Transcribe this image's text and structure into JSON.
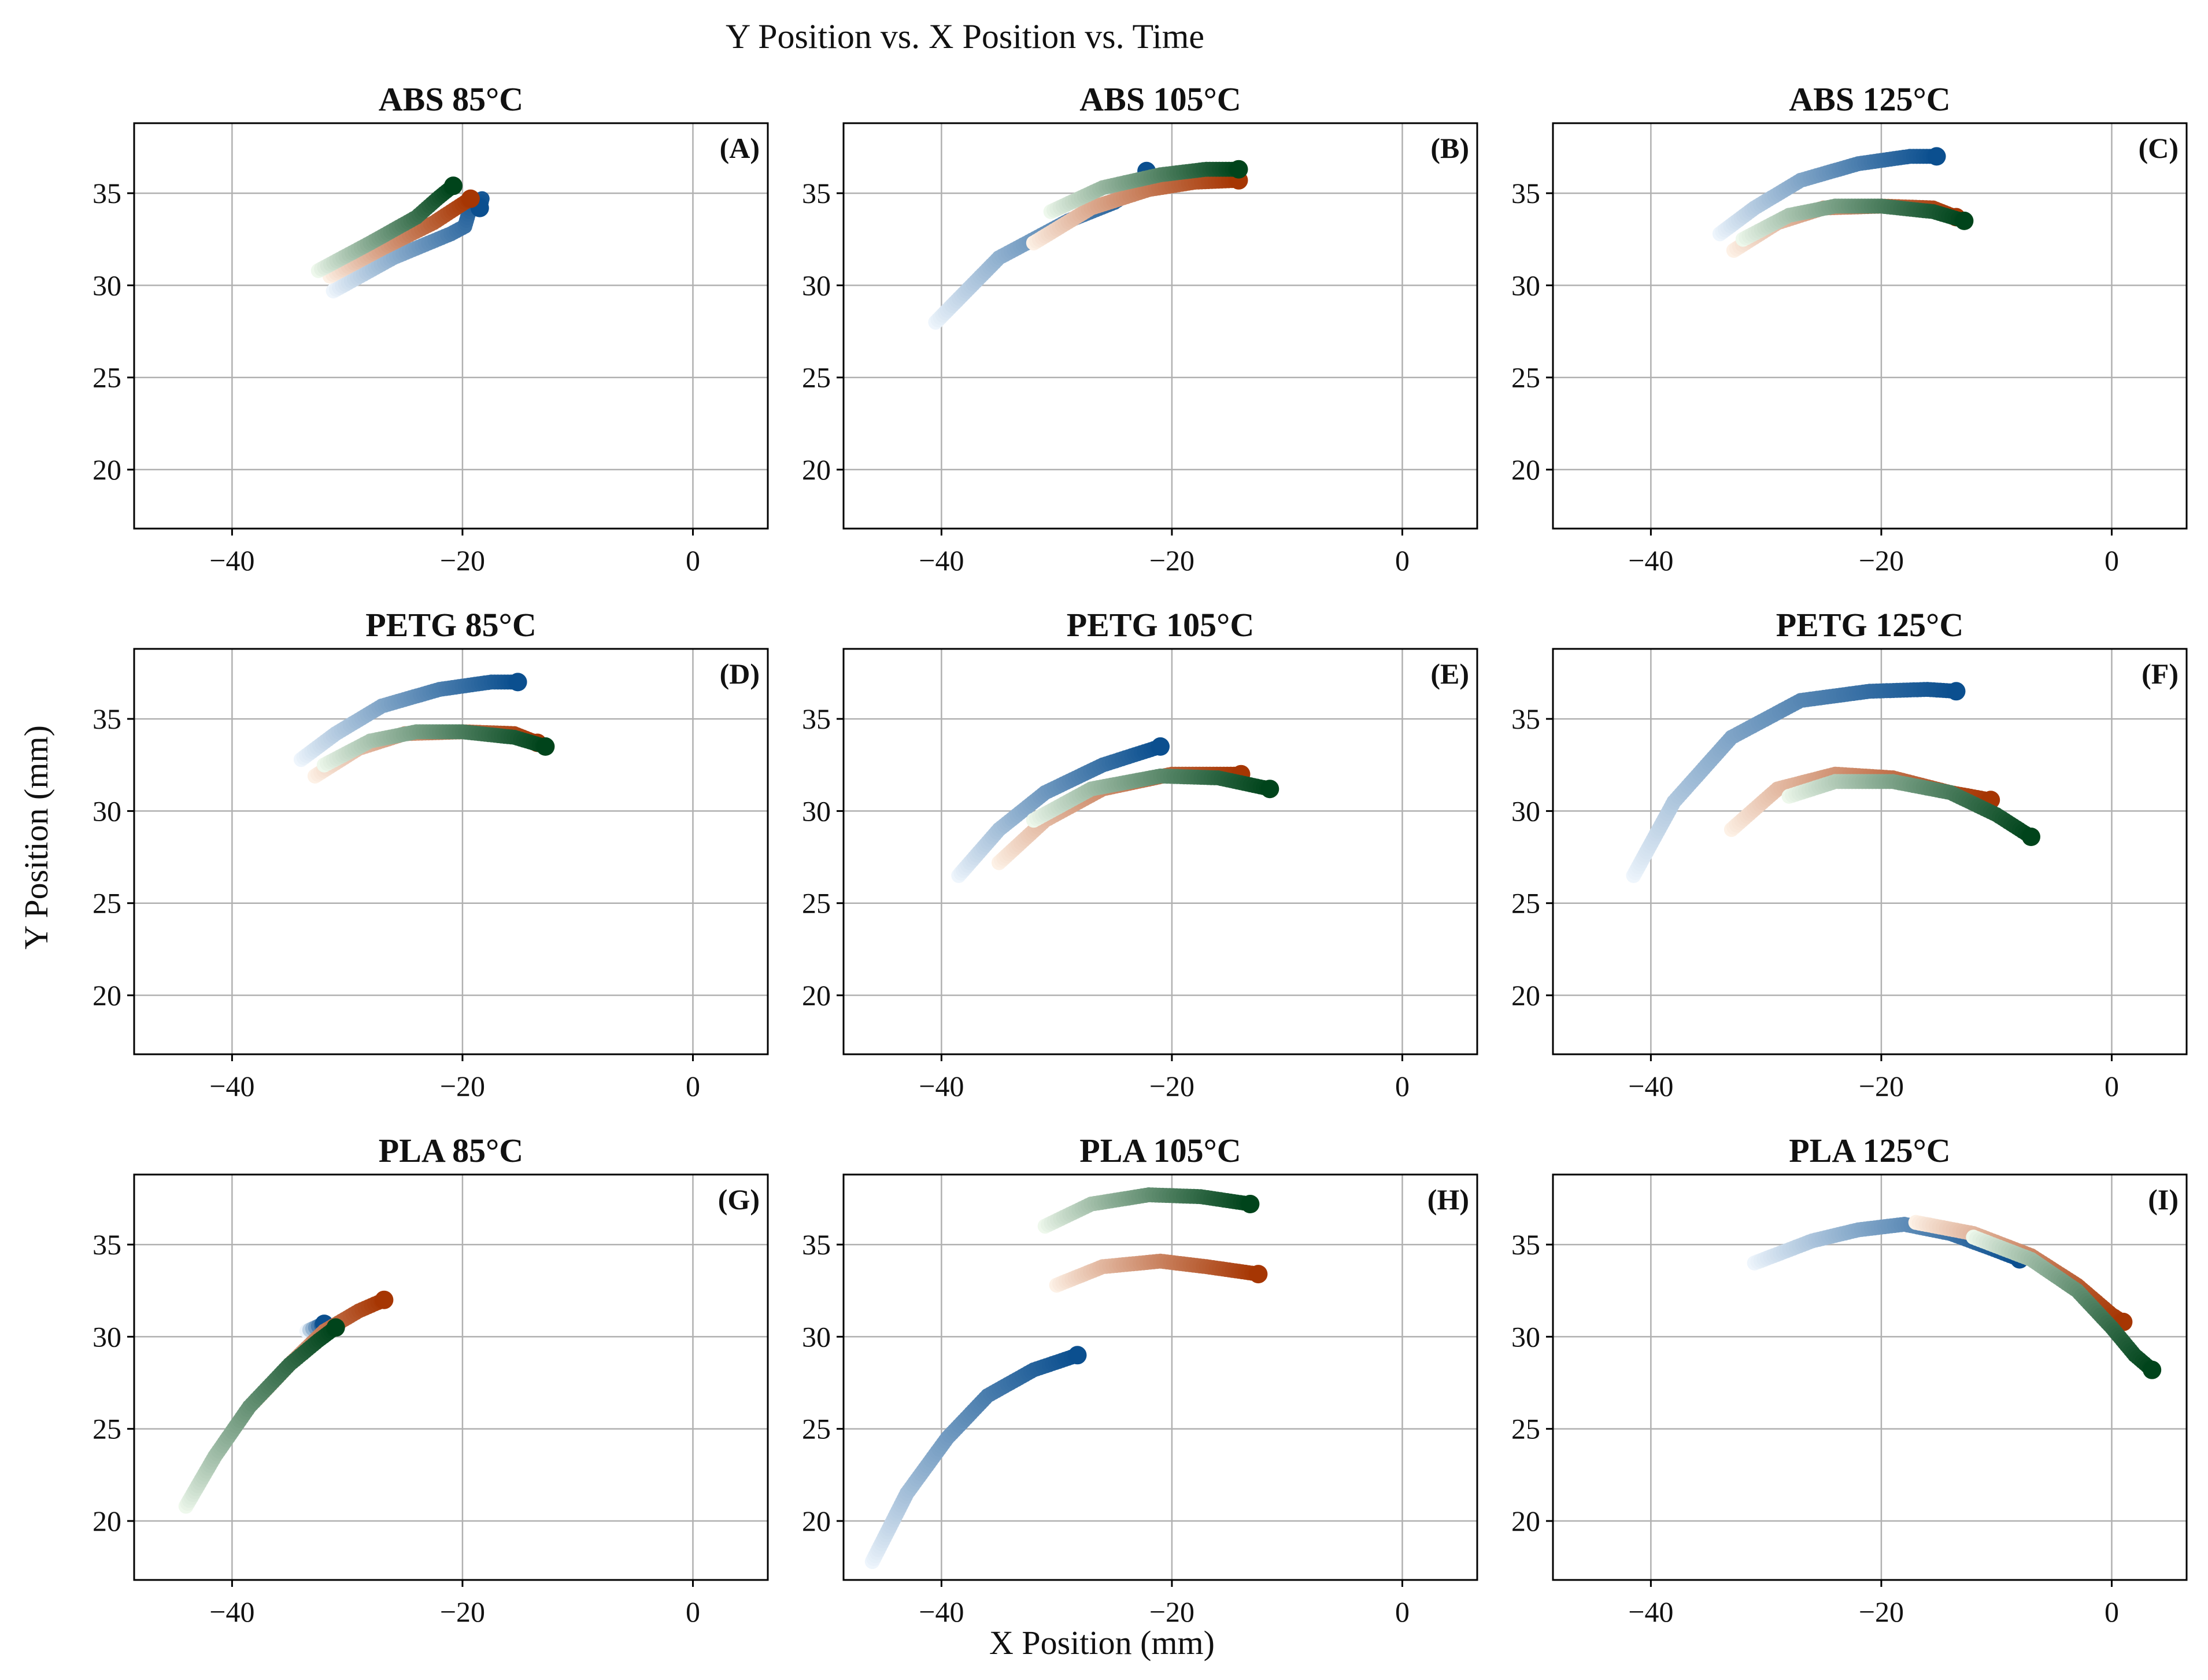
{
  "title": "Y Position vs. X Position vs. Time",
  "xlabel": "X Position (mm)",
  "ylabel": "Y Position (mm)",
  "colors": {
    "series_1": [
      "#eef5fc",
      "#0b4f8f"
    ],
    "series_2": [
      "#fdf1e6",
      "#a63603"
    ],
    "series_3": [
      "#eef8ec",
      "#00441b"
    ]
  },
  "chart_data": [
    {
      "type": "scatter",
      "title": "ABS 85°C",
      "letter": "(A)",
      "xlim": [
        -48.5,
        6.5
      ],
      "ylim": [
        16.8,
        38.8
      ],
      "xticks": [
        -40,
        -20,
        0
      ],
      "yticks": [
        20,
        25,
        30,
        35
      ],
      "grid": true,
      "series": [
        {
          "name": "series_1",
          "points": [
            [
              -31.2,
              29.7
            ],
            [
              -26,
              31.5
            ],
            [
              -21,
              32.8
            ],
            [
              -19.8,
              33.2
            ],
            [
              -19.2,
              34.5
            ],
            [
              -18.3,
              34.7
            ],
            [
              -18.5,
              34.2
            ]
          ]
        },
        {
          "name": "series_2",
          "points": [
            [
              -31.5,
              30.5
            ],
            [
              -27,
              32
            ],
            [
              -22.5,
              33.4
            ],
            [
              -19.8,
              34.5
            ],
            [
              -19.3,
              34.7
            ]
          ]
        },
        {
          "name": "series_3",
          "points": [
            [
              -32.5,
              30.8
            ],
            [
              -28,
              32.3
            ],
            [
              -24,
              33.7
            ],
            [
              -22,
              34.8
            ],
            [
              -20.8,
              35.4
            ]
          ]
        }
      ]
    },
    {
      "type": "scatter",
      "title": "ABS 105°C",
      "letter": "(B)",
      "xlim": [
        -48.5,
        6.5
      ],
      "ylim": [
        16.8,
        38.8
      ],
      "xticks": [
        -40,
        -20,
        0
      ],
      "yticks": [
        20,
        25,
        30,
        35
      ],
      "grid": true,
      "series": [
        {
          "name": "series_1",
          "points": [
            [
              -40.5,
              28
            ],
            [
              -35,
              31.5
            ],
            [
              -29,
              33.5
            ],
            [
              -25,
              34.5
            ],
            [
              -22.5,
              35.5
            ],
            [
              -22.2,
              36.2
            ]
          ]
        },
        {
          "name": "series_2",
          "points": [
            [
              -32,
              32.3
            ],
            [
              -27,
              34.2
            ],
            [
              -22,
              35.2
            ],
            [
              -18,
              35.6
            ],
            [
              -14.2,
              35.7
            ]
          ]
        },
        {
          "name": "series_3",
          "points": [
            [
              -30.5,
              34
            ],
            [
              -26,
              35.3
            ],
            [
              -21,
              36
            ],
            [
              -17,
              36.3
            ],
            [
              -14.2,
              36.3
            ]
          ]
        }
      ]
    },
    {
      "type": "scatter",
      "title": "ABS 125°C",
      "letter": "(C)",
      "xlim": [
        -48.5,
        6.5
      ],
      "ylim": [
        16.8,
        38.8
      ],
      "xticks": [
        -40,
        -20,
        0
      ],
      "yticks": [
        20,
        25,
        30,
        35
      ],
      "grid": true,
      "series": [
        {
          "name": "series_1",
          "points": [
            [
              -34,
              32.8
            ],
            [
              -31,
              34.2
            ],
            [
              -27,
              35.7
            ],
            [
              -22,
              36.6
            ],
            [
              -17.5,
              37
            ],
            [
              -15.2,
              37
            ]
          ]
        },
        {
          "name": "series_2",
          "points": [
            [
              -32.8,
              31.9
            ],
            [
              -29,
              33.4
            ],
            [
              -25,
              34.2
            ],
            [
              -20,
              34.3
            ],
            [
              -15.5,
              34.2
            ],
            [
              -13.5,
              33.7
            ]
          ]
        },
        {
          "name": "series_3",
          "points": [
            [
              -32,
              32.5
            ],
            [
              -28,
              33.8
            ],
            [
              -24,
              34.3
            ],
            [
              -20,
              34.3
            ],
            [
              -15.5,
              34
            ],
            [
              -12.8,
              33.5
            ]
          ]
        }
      ]
    },
    {
      "type": "scatter",
      "title": "PETG 85°C",
      "letter": "(D)",
      "xlim": [
        -48.5,
        6.5
      ],
      "ylim": [
        16.8,
        38.8
      ],
      "xticks": [
        -40,
        -20,
        0
      ],
      "yticks": [
        20,
        25,
        30,
        35
      ],
      "grid": true,
      "series": [
        {
          "name": "series_1",
          "points": [
            [
              -34,
              32.8
            ],
            [
              -31,
              34.2
            ],
            [
              -27,
              35.7
            ],
            [
              -22,
              36.6
            ],
            [
              -17.5,
              37
            ],
            [
              -15.2,
              37
            ]
          ]
        },
        {
          "name": "series_2",
          "points": [
            [
              -32.8,
              31.9
            ],
            [
              -29,
              33.4
            ],
            [
              -25,
              34.2
            ],
            [
              -20,
              34.3
            ],
            [
              -15.5,
              34.2
            ],
            [
              -13.5,
              33.7
            ]
          ]
        },
        {
          "name": "series_3",
          "points": [
            [
              -32,
              32.5
            ],
            [
              -28,
              33.8
            ],
            [
              -24,
              34.3
            ],
            [
              -20,
              34.3
            ],
            [
              -15.5,
              34
            ],
            [
              -12.8,
              33.5
            ]
          ]
        }
      ]
    },
    {
      "type": "scatter",
      "title": "PETG 105°C",
      "letter": "(E)",
      "xlim": [
        -48.5,
        6.5
      ],
      "ylim": [
        16.8,
        38.8
      ],
      "xticks": [
        -40,
        -20,
        0
      ],
      "yticks": [
        20,
        25,
        30,
        35
      ],
      "grid": true,
      "series": [
        {
          "name": "series_1",
          "points": [
            [
              -38.5,
              26.5
            ],
            [
              -35,
              29
            ],
            [
              -31,
              31
            ],
            [
              -26,
              32.5
            ],
            [
              -21,
              33.5
            ]
          ]
        },
        {
          "name": "series_2",
          "points": [
            [
              -35,
              27.2
            ],
            [
              -31,
              29.5
            ],
            [
              -26,
              31.2
            ],
            [
              -20,
              32
            ],
            [
              -14,
              32
            ]
          ]
        },
        {
          "name": "series_3",
          "points": [
            [
              -32,
              29.5
            ],
            [
              -27,
              31.2
            ],
            [
              -21,
              31.9
            ],
            [
              -16,
              31.8
            ],
            [
              -11.5,
              31.2
            ]
          ]
        }
      ]
    },
    {
      "type": "scatter",
      "title": "PETG 125°C",
      "letter": "(F)",
      "xlim": [
        -48.5,
        6.5
      ],
      "ylim": [
        16.8,
        38.8
      ],
      "xticks": [
        -40,
        -20,
        0
      ],
      "yticks": [
        20,
        25,
        30,
        35
      ],
      "grid": true,
      "series": [
        {
          "name": "series_1",
          "points": [
            [
              -41.5,
              26.5
            ],
            [
              -38,
              30.5
            ],
            [
              -33,
              34
            ],
            [
              -27,
              36
            ],
            [
              -21,
              36.5
            ],
            [
              -16,
              36.6
            ],
            [
              -13.5,
              36.5
            ]
          ]
        },
        {
          "name": "series_2",
          "points": [
            [
              -33,
              29
            ],
            [
              -29,
              31.2
            ],
            [
              -24,
              32
            ],
            [
              -19,
              31.8
            ],
            [
              -14,
              31
            ],
            [
              -10.5,
              30.6
            ]
          ]
        },
        {
          "name": "series_3",
          "points": [
            [
              -28,
              30.8
            ],
            [
              -24,
              31.6
            ],
            [
              -19,
              31.6
            ],
            [
              -14,
              31
            ],
            [
              -10,
              29.8
            ],
            [
              -7,
              28.6
            ]
          ]
        }
      ]
    },
    {
      "type": "scatter",
      "title": "PLA 85°C",
      "letter": "(G)",
      "xlim": [
        -48.5,
        6.5
      ],
      "ylim": [
        16.8,
        38.8
      ],
      "xticks": [
        -40,
        -20,
        0
      ],
      "yticks": [
        20,
        25,
        30,
        35
      ],
      "grid": true,
      "series": [
        {
          "name": "series_1",
          "points": [
            [
              -33.5,
              30.3
            ],
            [
              -32,
              30.7
            ]
          ]
        },
        {
          "name": "series_2",
          "points": [
            [
              -38,
              26.5
            ],
            [
              -35,
              28.5
            ],
            [
              -32,
              30.3
            ],
            [
              -29,
              31.4
            ],
            [
              -26.8,
              32
            ]
          ]
        },
        {
          "name": "series_3",
          "points": [
            [
              -44,
              20.8
            ],
            [
              -41.5,
              23.5
            ],
            [
              -38.5,
              26.2
            ],
            [
              -35,
              28.5
            ],
            [
              -32.5,
              29.8
            ],
            [
              -31,
              30.5
            ]
          ]
        }
      ]
    },
    {
      "type": "scatter",
      "title": "PLA 105°C",
      "letter": "(H)",
      "xlim": [
        -48.5,
        6.5
      ],
      "ylim": [
        16.8,
        38.8
      ],
      "xticks": [
        -40,
        -20,
        0
      ],
      "yticks": [
        20,
        25,
        30,
        35
      ],
      "grid": true,
      "series": [
        {
          "name": "series_1",
          "points": [
            [
              -46,
              17.8
            ],
            [
              -43,
              21.5
            ],
            [
              -39.5,
              24.5
            ],
            [
              -36,
              26.8
            ],
            [
              -32,
              28.2
            ],
            [
              -28.2,
              29
            ]
          ]
        },
        {
          "name": "series_2",
          "points": [
            [
              -30,
              32.8
            ],
            [
              -26,
              33.8
            ],
            [
              -21,
              34.1
            ],
            [
              -17,
              33.8
            ],
            [
              -12.5,
              33.4
            ]
          ]
        },
        {
          "name": "series_3",
          "points": [
            [
              -31,
              36
            ],
            [
              -27,
              37.2
            ],
            [
              -22,
              37.7
            ],
            [
              -17.5,
              37.6
            ],
            [
              -13.2,
              37.2
            ]
          ]
        }
      ]
    },
    {
      "type": "scatter",
      "title": "PLA 125°C",
      "letter": "(I)",
      "xlim": [
        -48.5,
        6.5
      ],
      "ylim": [
        16.8,
        38.8
      ],
      "xticks": [
        -40,
        -20,
        0
      ],
      "yticks": [
        20,
        25,
        30,
        35
      ],
      "grid": true,
      "series": [
        {
          "name": "series_1",
          "points": [
            [
              -31,
              34
            ],
            [
              -26,
              35.2
            ],
            [
              -22,
              35.8
            ],
            [
              -18,
              36.1
            ],
            [
              -14,
              35.6
            ],
            [
              -10.5,
              34.8
            ],
            [
              -8,
              34.2
            ]
          ]
        },
        {
          "name": "series_2",
          "points": [
            [
              -17,
              36.2
            ],
            [
              -12,
              35.6
            ],
            [
              -7,
              34.4
            ],
            [
              -3,
              32.8
            ],
            [
              0,
              31.2
            ],
            [
              1,
              30.8
            ]
          ]
        },
        {
          "name": "series_3",
          "points": [
            [
              -12,
              35.4
            ],
            [
              -7,
              34.2
            ],
            [
              -3,
              32.5
            ],
            [
              0,
              30.5
            ],
            [
              2,
              29
            ],
            [
              3.5,
              28.2
            ]
          ]
        }
      ]
    }
  ]
}
